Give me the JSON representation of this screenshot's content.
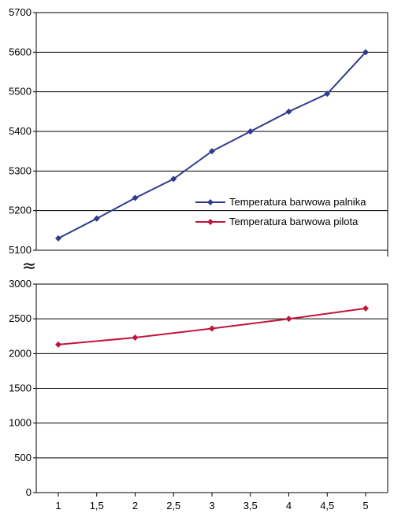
{
  "chart_data": {
    "type": "line",
    "title": "",
    "xlabel": "",
    "ylabel": "",
    "x": [
      1,
      1.5,
      2,
      2.5,
      3,
      3.5,
      4,
      4.5,
      5
    ],
    "x_tick_labels": [
      "1",
      "1,5",
      "2",
      "2,5",
      "3",
      "3,5",
      "4",
      "4,5",
      "5"
    ],
    "broken_axis_symbol": "≈",
    "grid": true,
    "legend_position": "right, inside upper panel",
    "panels": [
      {
        "ylim": [
          5100,
          5700
        ],
        "y_ticks": [
          5100,
          5200,
          5300,
          5400,
          5500,
          5600,
          5700
        ],
        "series": [
          {
            "name": "Temperatura barwowa palnika",
            "color": "#2F3C8C",
            "marker": "diamond",
            "x": [
              1,
              1.5,
              2,
              2.5,
              3,
              3.5,
              4,
              4.5,
              5
            ],
            "y": [
              5130,
              5180,
              5232,
              5280,
              5350,
              5400,
              5450,
              5495,
              5600
            ]
          }
        ]
      },
      {
        "ylim": [
          0,
          3000
        ],
        "y_ticks": [
          0,
          500,
          1000,
          1500,
          2000,
          2500,
          3000
        ],
        "series": [
          {
            "name": "Temperatura barwowa pilota",
            "color": "#C0143C",
            "marker": "diamond",
            "x": [
              1,
              2,
              3,
              4,
              5
            ],
            "y": [
              2130,
              2230,
              2360,
              2500,
              2650
            ]
          }
        ]
      }
    ]
  }
}
